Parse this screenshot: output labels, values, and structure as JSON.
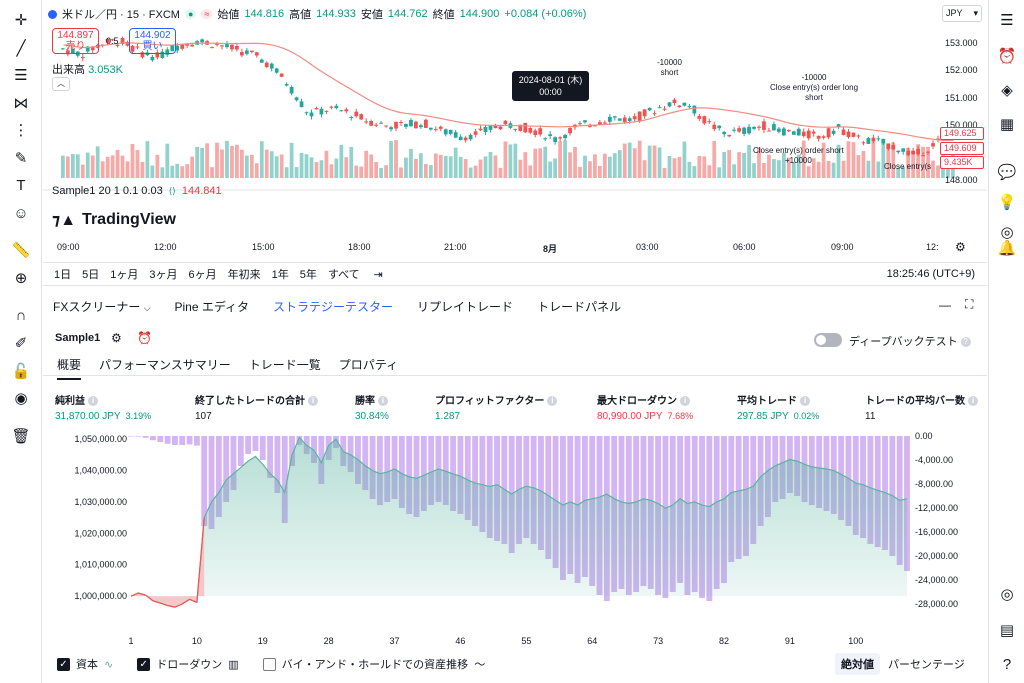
{
  "symbol": {
    "name": "米ドル／円 · 15 · FXCM",
    "open_label": "始値",
    "open": "144.816",
    "high_label": "高値",
    "high": "144.933",
    "low_label": "安値",
    "low": "144.762",
    "close_label": "終値",
    "close": "144.900",
    "change": "+0.084 (+0.06%)"
  },
  "trade": {
    "sell_price": "144.897",
    "sell_label": "売り",
    "spread": "0.5",
    "buy_price": "144.902",
    "buy_label": "買い"
  },
  "volume": {
    "label": "出来高",
    "value": "3.053K"
  },
  "indicator": {
    "label": "Sample1 20 1 0.1 0.03",
    "value": "144.841"
  },
  "logo": "TradingView",
  "currency": "JPY",
  "price_ticks": [
    "153.000",
    "152.000",
    "151.000",
    "150.000",
    "149.000",
    "148.000"
  ],
  "price_tags": [
    "149.625",
    "149.609",
    "9.435K"
  ],
  "time_ticks": [
    "09:00",
    "12:00",
    "15:00",
    "18:00",
    "21:00",
    "8月",
    "03:00",
    "06:00",
    "09:00",
    "12:"
  ],
  "tooltip": {
    "date": "2024-08-01 (木)",
    "time": "00:00"
  },
  "annotations": [
    "-10000",
    "short",
    "-10000",
    "Close entry(s) order long",
    "short",
    "Close entry(s) order short",
    "+10000",
    "Close entry(s"
  ],
  "timeframes": [
    "1日",
    "5日",
    "1ヶ月",
    "3ヶ月",
    "6ヶ月",
    "年初来",
    "1年",
    "5年",
    "すべて"
  ],
  "clock": "18:25:46 (UTC+9)",
  "panel_tabs": [
    "FXスクリーナー",
    "Pine エディタ",
    "ストラテジーテスター",
    "リプレイトレード",
    "トレードパネル"
  ],
  "strategy": {
    "name": "Sample1",
    "deep_backtest": "ディープバックテスト"
  },
  "sub_tabs": [
    "概要",
    "パフォーマンスサマリー",
    "トレード一覧",
    "プロパティ"
  ],
  "metrics": [
    {
      "label": "純利益",
      "value": "31,870.00 JPY",
      "pct": "3.19%",
      "color": "green"
    },
    {
      "label": "終了したトレードの合計",
      "value": "107",
      "pct": "",
      "color": "dark"
    },
    {
      "label": "勝率",
      "value": "30.84%",
      "pct": "",
      "color": "green"
    },
    {
      "label": "プロフィットファクター",
      "value": "1.287",
      "pct": "",
      "color": "green"
    },
    {
      "label": "最大ドローダウン",
      "value": "80,990.00 JPY",
      "pct": "7.68%",
      "color": "red"
    },
    {
      "label": "平均トレード",
      "value": "297.85 JPY",
      "pct": "0.02%",
      "color": "green"
    },
    {
      "label": "トレードの平均バー数",
      "value": "11",
      "pct": "",
      "color": "dark"
    }
  ],
  "chart_data": {
    "type": "area",
    "x_ticks": [
      "1",
      "10",
      "19",
      "28",
      "37",
      "46",
      "55",
      "64",
      "73",
      "82",
      "91",
      "100"
    ],
    "y_left_ticks": [
      "1,050,000.00",
      "1,040,000.00",
      "1,030,000.00",
      "1,020,000.00",
      "1,010,000.00",
      "1,000,000.00"
    ],
    "y_right_ticks": [
      "0.00",
      "-4,000.00",
      "-8,000.00",
      "-12,000.00",
      "-16,000.00",
      "-20,000.00",
      "-24,000.00",
      "-28,000.00"
    ],
    "ylim_left": [
      997500,
      1051000
    ],
    "ylim_right": [
      -28000,
      0
    ],
    "series": [
      {
        "name": "資本",
        "values": [
          1000000,
          1001000,
          1000300,
          998500,
          997800,
          997000,
          996500,
          997500,
          999000,
          998000,
          1025000,
          1030000,
          1033000,
          1037000,
          1039000,
          1041000,
          1043000,
          1044500,
          1042000,
          1039000,
          1037000,
          1033000,
          1045000,
          1050500,
          1048000,
          1046500,
          1042500,
          1048000,
          1050000,
          1046000,
          1045000,
          1043500,
          1041500,
          1040000,
          1039000,
          1039500,
          1040500,
          1039000,
          1038000,
          1037500,
          1038500,
          1039500,
          1040500,
          1039800,
          1038900,
          1038200,
          1037000,
          1036000,
          1035500,
          1034900,
          1035500,
          1034000,
          1032500,
          1034000,
          1035000,
          1034500,
          1033500,
          1032000,
          1030500,
          1029000,
          1030000,
          1029000,
          1030500,
          1031000,
          1031500,
          1032500,
          1031000,
          1030000,
          1029500,
          1030000,
          1031000,
          1030500,
          1029500,
          1028000,
          1029000,
          1031000,
          1029500,
          1030000,
          1029000,
          1028500,
          1030000,
          1031000,
          1033000,
          1033500,
          1034000,
          1035000,
          1038000,
          1040000,
          1041500,
          1042500,
          1043500,
          1043000,
          1042000,
          1041200,
          1040800,
          1040500,
          1040000,
          1038800,
          1037500,
          1036000,
          1035500,
          1034500,
          1033700,
          1033000,
          1032000,
          1030500,
          1031000
        ]
      },
      {
        "name": "ドローダウン",
        "values": [
          0,
          -100,
          -300,
          -700,
          -1000,
          -1300,
          -1500,
          -1500,
          -1400,
          -1600,
          -15000,
          -15500,
          -13500,
          -11000,
          -9000,
          -5000,
          -3000,
          -2500,
          -4000,
          -7000,
          -9500,
          -14500,
          -5000,
          -1500,
          -3000,
          -4500,
          -8000,
          -4000,
          -2000,
          -5000,
          -6000,
          -8000,
          -9000,
          -10500,
          -11500,
          -11000,
          -10500,
          -12000,
          -13000,
          -13500,
          -12500,
          -11500,
          -11000,
          -11500,
          -12500,
          -13000,
          -14000,
          -15000,
          -16000,
          -17000,
          -17500,
          -18000,
          -19500,
          -18000,
          -17000,
          -18000,
          -19000,
          -20500,
          -22000,
          -24000,
          -23000,
          -24500,
          -23500,
          -25000,
          -26500,
          -27500,
          -26000,
          -25500,
          -26500,
          -26000,
          -25000,
          -25500,
          -26500,
          -27000,
          -26000,
          -24500,
          -26500,
          -26000,
          -27000,
          -27500,
          -25500,
          -24500,
          -21000,
          -20500,
          -20000,
          -18000,
          -15000,
          -13500,
          -11000,
          -10500,
          -9500,
          -10000,
          -11000,
          -11500,
          -12000,
          -12500,
          -13000,
          -14000,
          -15000,
          -16500,
          -17000,
          -18000,
          -18500,
          -19000,
          -20000,
          -21500,
          -22500
        ]
      }
    ]
  },
  "legend": {
    "capital": "資本",
    "drawdown": "ドローダウン",
    "buy_hold": "バイ・アンド・ホールドでの資産推移",
    "absolute": "絶対値",
    "percentage": "パーセンテージ"
  },
  "colors": {
    "up": "#26a69a",
    "down": "#ef5350",
    "equity_line": "#5bb4a0",
    "drawdown": "#c9a3f0",
    "ma": "#f28b82",
    "accent": "#2962ff"
  }
}
